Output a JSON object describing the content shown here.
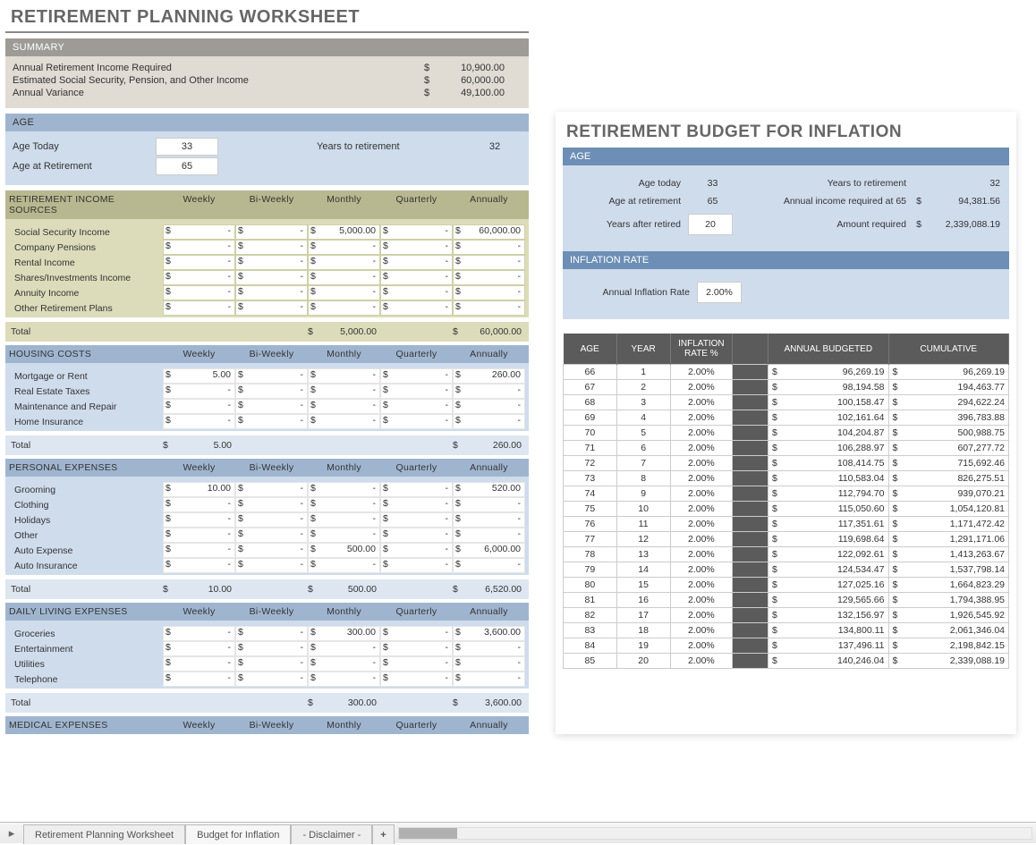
{
  "left": {
    "title": "RETIREMENT PLANNING WORKSHEET",
    "summary": {
      "bar": "SUMMARY",
      "rows": [
        {
          "label": "Annual Retirement Income Required",
          "cur": "$",
          "val": "10,900.00"
        },
        {
          "label": "Estimated Social Security, Pension, and Other Income",
          "cur": "$",
          "val": "60,000.00"
        },
        {
          "label": "Annual Variance",
          "cur": "$",
          "val": "49,100.00"
        }
      ]
    },
    "age": {
      "bar": "AGE",
      "today_label": "Age Today",
      "today": "33",
      "retire_label": "Age at Retirement",
      "retire": "65",
      "years_label": "Years to retirement",
      "years": "32"
    },
    "period_headers": [
      "Weekly",
      "Bi-Weekly",
      "Monthly",
      "Quarterly",
      "Annually"
    ],
    "sections": [
      {
        "bar": "RETIREMENT INCOME SOURCES",
        "style": "olive",
        "rows": [
          {
            "label": "Social Security Income",
            "cells": [
              "-",
              "-",
              "5,000.00",
              "-",
              "60,000.00"
            ]
          },
          {
            "label": "Company Pensions",
            "cells": [
              "-",
              "-",
              "-",
              "-",
              "-"
            ]
          },
          {
            "label": "Rental Income",
            "cells": [
              "-",
              "-",
              "-",
              "-",
              "-"
            ]
          },
          {
            "label": "Shares/Investments Income",
            "cells": [
              "-",
              "-",
              "-",
              "-",
              "-"
            ]
          },
          {
            "label": "Annuity Income",
            "cells": [
              "-",
              "-",
              "-",
              "-",
              "-"
            ]
          },
          {
            "label": "Other Retirement Plans",
            "cells": [
              "-",
              "-",
              "-",
              "-",
              "-"
            ]
          }
        ],
        "total_label": "Total",
        "totals": [
          "",
          "",
          "5,000.00",
          "",
          "60,000.00"
        ]
      },
      {
        "bar": "HOUSING COSTS",
        "style": "blue",
        "rows": [
          {
            "label": "Mortgage or Rent",
            "cells": [
              "5.00",
              "-",
              "-",
              "-",
              "260.00"
            ]
          },
          {
            "label": "Real Estate Taxes",
            "cells": [
              "-",
              "-",
              "-",
              "-",
              "-"
            ]
          },
          {
            "label": "Maintenance and Repair",
            "cells": [
              "-",
              "-",
              "-",
              "-",
              "-"
            ]
          },
          {
            "label": "Home Insurance",
            "cells": [
              "-",
              "-",
              "-",
              "-",
              "-"
            ]
          }
        ],
        "total_label": "Total",
        "totals": [
          "5.00",
          "",
          "",
          "",
          "260.00"
        ]
      },
      {
        "bar": "PERSONAL EXPENSES",
        "style": "blue",
        "rows": [
          {
            "label": "Grooming",
            "cells": [
              "10.00",
              "-",
              "-",
              "-",
              "520.00"
            ]
          },
          {
            "label": "Clothing",
            "cells": [
              "-",
              "-",
              "-",
              "-",
              "-"
            ]
          },
          {
            "label": "Holidays",
            "cells": [
              "-",
              "-",
              "-",
              "-",
              "-"
            ]
          },
          {
            "label": "Other",
            "cells": [
              "-",
              "-",
              "-",
              "-",
              "-"
            ]
          },
          {
            "label": "Auto Expense",
            "cells": [
              "-",
              "-",
              "500.00",
              "-",
              "6,000.00"
            ]
          },
          {
            "label": "Auto Insurance",
            "cells": [
              "-",
              "-",
              "-",
              "-",
              "-"
            ]
          }
        ],
        "total_label": "Total",
        "totals": [
          "10.00",
          "",
          "500.00",
          "",
          "6,520.00"
        ]
      },
      {
        "bar": "DAILY LIVING EXPENSES",
        "style": "blue",
        "rows": [
          {
            "label": "Groceries",
            "cells": [
              "-",
              "-",
              "300.00",
              "-",
              "3,600.00"
            ]
          },
          {
            "label": "Entertainment",
            "cells": [
              "-",
              "-",
              "-",
              "-",
              "-"
            ]
          },
          {
            "label": "Utilities",
            "cells": [
              "-",
              "-",
              "-",
              "-",
              "-"
            ]
          },
          {
            "label": "Telephone",
            "cells": [
              "-",
              "-",
              "-",
              "-",
              "-"
            ]
          }
        ],
        "total_label": "Total",
        "totals": [
          "",
          "",
          "300.00",
          "",
          "3,600.00"
        ]
      },
      {
        "bar": "MEDICAL EXPENSES",
        "style": "blue",
        "header_only": true
      }
    ]
  },
  "right": {
    "title": "RETIREMENT BUDGET FOR INFLATION",
    "age_bar": "AGE",
    "rows": [
      {
        "l1": "Age today",
        "v1": "33",
        "l2": "Years to retirement",
        "cur": "",
        "v2": "32"
      },
      {
        "l1": "Age at retirement",
        "v1": "65",
        "l2": "Annual income required at 65",
        "cur": "$",
        "v2": "94,381.56"
      },
      {
        "l1": "Years after retired",
        "v1": "20",
        "input": true,
        "l2": "Amount required",
        "cur": "$",
        "v2": "2,339,088.19"
      }
    ],
    "rate_bar": "INFLATION RATE",
    "rate_label": "Annual Inflation Rate",
    "rate": "2.00%",
    "table": {
      "headers": [
        "AGE",
        "YEAR",
        "INFLATION RATE %",
        "",
        "ANNUAL BUDGETED",
        "CUMULATIVE"
      ],
      "rows": [
        {
          "age": "66",
          "year": "1",
          "rate": "2.00%",
          "annual": "96,269.19",
          "cum": "96,269.19"
        },
        {
          "age": "67",
          "year": "2",
          "rate": "2.00%",
          "annual": "98,194.58",
          "cum": "194,463.77"
        },
        {
          "age": "68",
          "year": "3",
          "rate": "2.00%",
          "annual": "100,158.47",
          "cum": "294,622.24"
        },
        {
          "age": "69",
          "year": "4",
          "rate": "2.00%",
          "annual": "102,161.64",
          "cum": "396,783.88"
        },
        {
          "age": "70",
          "year": "5",
          "rate": "2.00%",
          "annual": "104,204.87",
          "cum": "500,988.75"
        },
        {
          "age": "71",
          "year": "6",
          "rate": "2.00%",
          "annual": "106,288.97",
          "cum": "607,277.72"
        },
        {
          "age": "72",
          "year": "7",
          "rate": "2.00%",
          "annual": "108,414.75",
          "cum": "715,692.46"
        },
        {
          "age": "73",
          "year": "8",
          "rate": "2.00%",
          "annual": "110,583.04",
          "cum": "826,275.51"
        },
        {
          "age": "74",
          "year": "9",
          "rate": "2.00%",
          "annual": "112,794.70",
          "cum": "939,070.21"
        },
        {
          "age": "75",
          "year": "10",
          "rate": "2.00%",
          "annual": "115,050.60",
          "cum": "1,054,120.81"
        },
        {
          "age": "76",
          "year": "11",
          "rate": "2.00%",
          "annual": "117,351.61",
          "cum": "1,171,472.42"
        },
        {
          "age": "77",
          "year": "12",
          "rate": "2.00%",
          "annual": "119,698.64",
          "cum": "1,291,171.06"
        },
        {
          "age": "78",
          "year": "13",
          "rate": "2.00%",
          "annual": "122,092.61",
          "cum": "1,413,263.67"
        },
        {
          "age": "79",
          "year": "14",
          "rate": "2.00%",
          "annual": "124,534.47",
          "cum": "1,537,798.14"
        },
        {
          "age": "80",
          "year": "15",
          "rate": "2.00%",
          "annual": "127,025.16",
          "cum": "1,664,823.29"
        },
        {
          "age": "81",
          "year": "16",
          "rate": "2.00%",
          "annual": "129,565.66",
          "cum": "1,794,388.95"
        },
        {
          "age": "82",
          "year": "17",
          "rate": "2.00%",
          "annual": "132,156.97",
          "cum": "1,926,545.92"
        },
        {
          "age": "83",
          "year": "18",
          "rate": "2.00%",
          "annual": "134,800.11",
          "cum": "2,061,346.04"
        },
        {
          "age": "84",
          "year": "19",
          "rate": "2.00%",
          "annual": "137,496.11",
          "cum": "2,198,842.15"
        },
        {
          "age": "85",
          "year": "20",
          "rate": "2.00%",
          "annual": "140,246.04",
          "cum": "2,339,088.19"
        }
      ]
    }
  },
  "tabs": {
    "t1": "Retirement Planning Worksheet",
    "t2": "Budget for Inflation",
    "t3": "- Disclaimer -",
    "plus": "+"
  }
}
